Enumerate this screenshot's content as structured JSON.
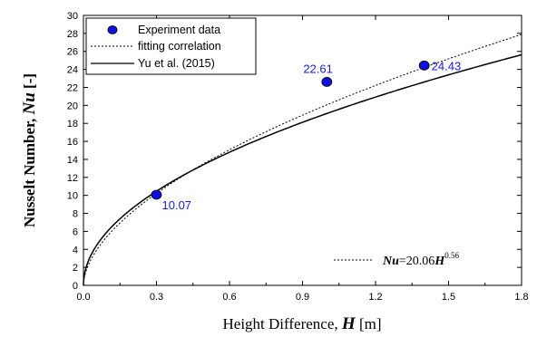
{
  "chart_data": {
    "type": "scatter",
    "title": "",
    "xlabel_prefix": "Height Difference, ",
    "xlabel_symbol": "H",
    "xlabel_unit": " [m]",
    "ylabel_prefix": "Nusselt  Number, ",
    "ylabel_symbol": "Nu",
    "ylabel_unit": " [-]",
    "xlim": [
      0.0,
      1.8
    ],
    "ylim": [
      0,
      30
    ],
    "x_ticks": [
      "0.0",
      "0.3",
      "0.6",
      "0.9",
      "1.2",
      "1.5",
      "1.8"
    ],
    "y_ticks": [
      "0",
      "2",
      "4",
      "6",
      "8",
      "10",
      "12",
      "14",
      "16",
      "18",
      "20",
      "22",
      "24",
      "26",
      "28",
      "30"
    ],
    "grid": false,
    "legend_position": "top-left",
    "series": [
      {
        "name": "Experiment data",
        "kind": "points",
        "color": "#1010e0",
        "points": [
          {
            "x": 0.3,
            "y": 10.07,
            "label": "10.07"
          },
          {
            "x": 1.0,
            "y": 22.61,
            "label": "22.61"
          },
          {
            "x": 1.4,
            "y": 24.43,
            "label": "24.43"
          }
        ]
      },
      {
        "name": "fitting correlation",
        "kind": "dotted-line",
        "formula": {
          "a": 20.06,
          "b": 0.56
        }
      },
      {
        "name": "Yu et al. (2015)",
        "kind": "solid-line",
        "formula": {
          "a": 19.1,
          "b": 0.5
        }
      }
    ],
    "annotation": {
      "symbol_left": "Nu",
      "equals_coef": "=20.06",
      "symbol_right": "H",
      "exponent": "0.56"
    }
  }
}
